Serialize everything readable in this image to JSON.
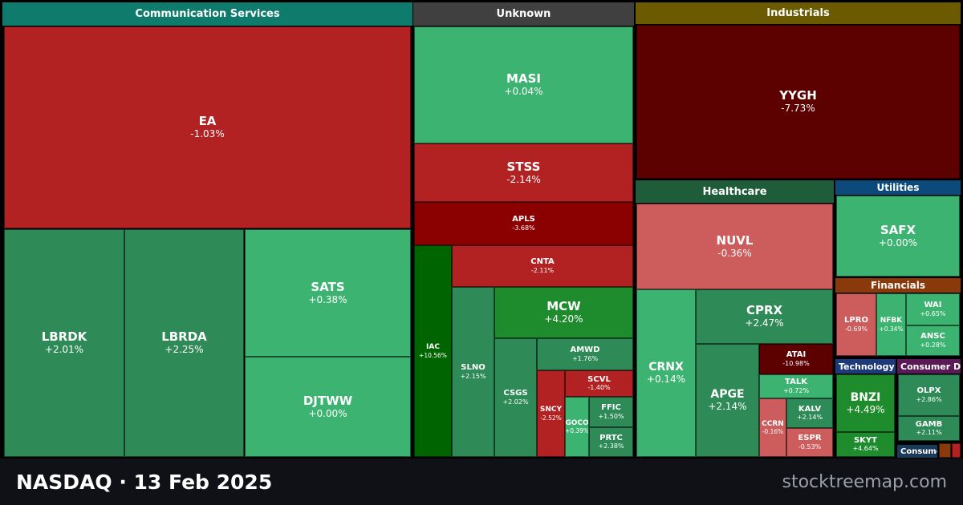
{
  "footer": {
    "title": "NASDAQ · 13 Feb 2025",
    "brand": "stocktreemap.com"
  },
  "colors": {
    "strong_up": "#1e8c2d",
    "very_strong_up": "#006400",
    "up": "#2e8b57",
    "slight_up": "#3cb371",
    "flat": "#3cb371",
    "slight_down": "#cd5c5c",
    "down": "#b22222",
    "strong_down": "#8b0000",
    "very_strong_down": "#5c0000"
  },
  "chart_data": {
    "type": "treemap",
    "sectors": [
      {
        "name": "Communication Services",
        "color": "#0f7b6c",
        "stocks": [
          {
            "symbol": "EA",
            "change": "-1.03%"
          },
          {
            "symbol": "LBRDK",
            "change": "+2.01%"
          },
          {
            "symbol": "LBRDA",
            "change": "+2.25%"
          },
          {
            "symbol": "SATS",
            "change": "+0.38%"
          },
          {
            "symbol": "DJTWW",
            "change": "+0.00%"
          }
        ]
      },
      {
        "name": "Unknown",
        "color": "#404040",
        "stocks": [
          {
            "symbol": "MASI",
            "change": "+0.04%"
          },
          {
            "symbol": "STSS",
            "change": "-2.14%"
          },
          {
            "symbol": "APLS",
            "change": "-3.68%"
          },
          {
            "symbol": "IAC",
            "change": "+10.56%"
          },
          {
            "symbol": "CNTA",
            "change": "-2.11%"
          },
          {
            "symbol": "SLNO",
            "change": "+2.15%"
          },
          {
            "symbol": "MCW",
            "change": "+4.20%"
          },
          {
            "symbol": "CSGS",
            "change": "+2.02%"
          },
          {
            "symbol": "AMWD",
            "change": "+1.76%"
          },
          {
            "symbol": "SNCY",
            "change": "-2.52%"
          },
          {
            "symbol": "SCVL",
            "change": "-1.40%"
          },
          {
            "symbol": "GOCO",
            "change": "+0.39%"
          },
          {
            "symbol": "FFIC",
            "change": "+1.50%"
          },
          {
            "symbol": "PRTC",
            "change": "+2.38%"
          }
        ]
      },
      {
        "name": "Industrials",
        "color": "#6b5a00",
        "stocks": [
          {
            "symbol": "YYGH",
            "change": "-7.73%"
          }
        ]
      },
      {
        "name": "Healthcare",
        "color": "#1e5c3a",
        "stocks": [
          {
            "symbol": "NUVL",
            "change": "-0.36%"
          },
          {
            "symbol": "CRNX",
            "change": "+0.14%"
          },
          {
            "symbol": "CPRX",
            "change": "+2.47%"
          },
          {
            "symbol": "APGE",
            "change": "+2.14%"
          },
          {
            "symbol": "ATAI",
            "change": "-10.98%"
          },
          {
            "symbol": "TALK",
            "change": "+0.72%"
          },
          {
            "symbol": "CCRN",
            "change": "-0.16%"
          },
          {
            "symbol": "KALV",
            "change": "+2.14%"
          },
          {
            "symbol": "ESPR",
            "change": "-0.53%"
          }
        ]
      },
      {
        "name": "Utilities",
        "color": "#0b4a7a",
        "stocks": [
          {
            "symbol": "SAFX",
            "change": "+0.00%"
          }
        ]
      },
      {
        "name": "Financials",
        "color": "#8a3a0a",
        "stocks": [
          {
            "symbol": "LPRO",
            "change": "-0.69%"
          },
          {
            "symbol": "NFBK",
            "change": "+0.34%"
          },
          {
            "symbol": "WAI",
            "change": "+0.65%"
          },
          {
            "symbol": "ANSC",
            "change": "+0.28%"
          }
        ]
      },
      {
        "name": "Technology",
        "color": "#1f3a78",
        "stocks": [
          {
            "symbol": "BNZI",
            "change": "+4.49%"
          },
          {
            "symbol": "SKYT",
            "change": "+4.64%"
          }
        ]
      },
      {
        "name": "Consumer Discretionary",
        "color": "#5a1a55",
        "stocks": [
          {
            "symbol": "OLPX",
            "change": "+2.86%"
          },
          {
            "symbol": "GAMB",
            "change": "+2.11%"
          }
        ]
      },
      {
        "name": "Consumer Staples",
        "color": "#1a3a5a",
        "stocks": []
      }
    ]
  }
}
